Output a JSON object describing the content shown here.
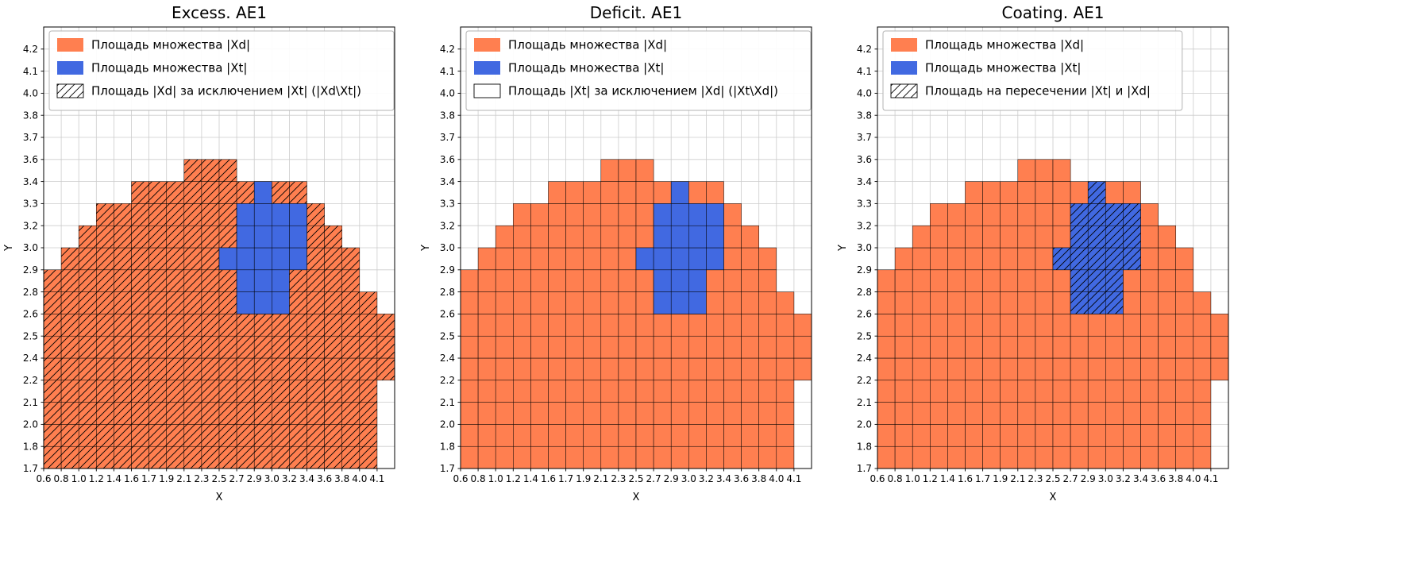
{
  "chart_data": {
    "type": "heatmap",
    "grid_cols": 20,
    "grid_rows": 20,
    "xlabel": "X",
    "ylabel": "Y",
    "x_tick_labels": [
      "0.6",
      "0.8",
      "1.0",
      "1.2",
      "1.4",
      "1.6",
      "1.7",
      "1.9",
      "2.1",
      "2.3",
      "2.5",
      "2.7",
      "2.9",
      "3.0",
      "3.2",
      "3.4",
      "3.6",
      "3.8",
      "4.0",
      "4.1"
    ],
    "y_tick_labels": [
      "1.7",
      "1.8",
      "2.0",
      "2.1",
      "2.2",
      "2.4",
      "2.5",
      "2.6",
      "2.8",
      "2.9",
      "3.0",
      "3.2",
      "3.3",
      "3.4",
      "3.6",
      "3.7",
      "3.8",
      "4.0",
      "4.1",
      "4.2"
    ],
    "colors": {
      "xd_fill": "#FF7F50",
      "xt_fill": "#4169E1",
      "grid_line": "#cccccc",
      "cell_edge": "#000000",
      "legend_border": "#b3b3b3",
      "hatch_line": "#000000",
      "background": "#ffffff"
    },
    "xd_region_row_extents": [
      [
        0,
        0,
        18
      ],
      [
        1,
        0,
        18
      ],
      [
        2,
        0,
        18
      ],
      [
        3,
        0,
        18
      ],
      [
        4,
        0,
        19
      ],
      [
        5,
        0,
        19
      ],
      [
        6,
        0,
        19
      ],
      [
        7,
        0,
        18
      ],
      [
        8,
        0,
        17
      ],
      [
        9,
        1,
        17
      ],
      [
        10,
        2,
        16
      ],
      [
        11,
        3,
        15
      ],
      [
        12,
        5,
        14
      ],
      [
        13,
        8,
        10
      ]
    ],
    "xt_region_row_extents": [
      [
        7,
        11,
        13
      ],
      [
        8,
        11,
        13
      ],
      [
        9,
        10,
        14
      ],
      [
        10,
        11,
        14
      ],
      [
        11,
        11,
        14
      ],
      [
        12,
        12,
        12
      ]
    ],
    "plots": [
      {
        "title": "Excess. AE1",
        "hatch_region": "xd_minus_xt",
        "legend": [
          {
            "label": "Площадь множества |Xd|",
            "swatch": "xd"
          },
          {
            "label": "Площадь множества  |Xt|",
            "swatch": "xt"
          },
          {
            "label": "Площадь |Xd| за исключением |Xt| (|Xd\\Xt|)",
            "swatch": "hatch"
          }
        ]
      },
      {
        "title": "Deficit. AE1",
        "hatch_region": "none",
        "legend": [
          {
            "label": "Площадь множества |Xd|",
            "swatch": "xd"
          },
          {
            "label": "Площадь множества  |Xt|",
            "swatch": "xt"
          },
          {
            "label": "Площадь |Xt| за исключением |Xd| (|Xt\\Xd|)",
            "swatch": "blank"
          }
        ]
      },
      {
        "title": "Coating. AE1",
        "hatch_region": "xt_intersect_xd",
        "legend": [
          {
            "label": "Площадь множества |Xd|",
            "swatch": "xd"
          },
          {
            "label": "Площадь множества  |Xt|",
            "swatch": "xt"
          },
          {
            "label": "Площадь на пересечении |Xt| и |Xd|",
            "swatch": "hatch"
          }
        ]
      }
    ]
  }
}
